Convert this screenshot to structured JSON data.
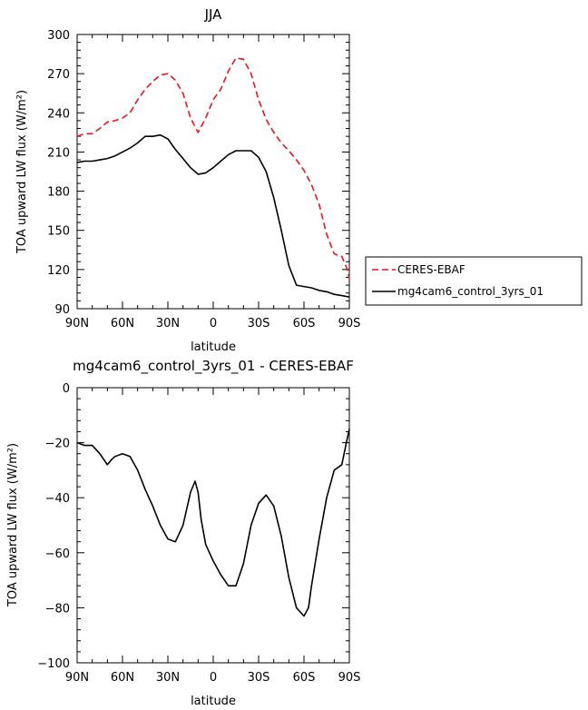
{
  "chart_data": [
    {
      "type": "line",
      "title": "JJA",
      "xlabel": "latitude",
      "ylabel": "TOA upward LW flux (W/m²)",
      "xlim": [
        90,
        -90
      ],
      "ylim": [
        90,
        300
      ],
      "xticks": [
        90,
        60,
        30,
        0,
        -30,
        -60,
        -90
      ],
      "xtick_labels": [
        "90N",
        "60N",
        "30N",
        "0",
        "30S",
        "60S",
        "90S"
      ],
      "yticks": [
        90,
        120,
        150,
        180,
        210,
        240,
        270,
        300
      ],
      "ytick_labels": [
        "90",
        "120",
        "150",
        "180",
        "210",
        "240",
        "270",
        "300"
      ],
      "legend_position": "right",
      "series": [
        {
          "name": "CERES-EBAF",
          "color": "#e8141e",
          "dash": "dashed",
          "x": [
            90,
            85,
            80,
            75,
            70,
            65,
            60,
            55,
            50,
            45,
            40,
            35,
            30,
            25,
            20,
            15,
            10,
            5,
            0,
            -5,
            -10,
            -15,
            -20,
            -25,
            -30,
            -35,
            -40,
            -45,
            -50,
            -55,
            -60,
            -65,
            -70,
            -75,
            -80,
            -85,
            -88,
            -90
          ],
          "y": [
            222,
            224,
            224,
            228,
            233,
            234,
            236,
            240,
            250,
            258,
            264,
            269,
            270,
            265,
            255,
            236,
            225,
            236,
            250,
            258,
            272,
            282,
            281,
            270,
            250,
            235,
            225,
            217,
            211,
            204,
            196,
            185,
            170,
            147,
            132,
            130,
            122,
            113
          ]
        },
        {
          "name": "mg4cam6_control_3yrs_01",
          "color": "#000000",
          "dash": "solid",
          "x": [
            90,
            85,
            80,
            75,
            70,
            65,
            60,
            55,
            50,
            45,
            40,
            35,
            30,
            25,
            20,
            15,
            10,
            5,
            0,
            -5,
            -10,
            -15,
            -20,
            -25,
            -30,
            -35,
            -40,
            -45,
            -50,
            -55,
            -60,
            -65,
            -70,
            -75,
            -80,
            -85,
            -90
          ],
          "y": [
            202,
            203,
            203,
            204,
            205,
            207,
            210,
            213,
            217,
            222,
            222,
            223,
            220,
            212,
            205,
            198,
            193,
            194,
            198,
            203,
            208,
            211,
            211,
            211,
            206,
            195,
            175,
            150,
            123,
            108,
            107,
            106,
            104,
            103,
            101,
            100,
            99
          ]
        }
      ]
    },
    {
      "type": "line",
      "title": "mg4cam6_control_3yrs_01 - CERES-EBAF",
      "xlabel": "latitude",
      "ylabel": "TOA upward LW flux (W/m²)",
      "xlim": [
        90,
        -90
      ],
      "ylim": [
        -100,
        0
      ],
      "xticks": [
        90,
        60,
        30,
        0,
        -30,
        -60,
        -90
      ],
      "xtick_labels": [
        "90N",
        "60N",
        "30N",
        "0",
        "30S",
        "60S",
        "90S"
      ],
      "yticks": [
        -100,
        -80,
        -60,
        -40,
        -20,
        0
      ],
      "ytick_labels": [
        "−100",
        "−80",
        "−60",
        "−40",
        "−20",
        "0"
      ],
      "series": [
        {
          "color": "#000000",
          "dash": "solid",
          "x": [
            90,
            85,
            80,
            75,
            70,
            67,
            65,
            60,
            55,
            50,
            45,
            40,
            35,
            30,
            25,
            20,
            15,
            12,
            10,
            8,
            5,
            0,
            -5,
            -10,
            -15,
            -20,
            -25,
            -30,
            -35,
            -40,
            -45,
            -50,
            -55,
            -60,
            -63,
            -65,
            -70,
            -75,
            -80,
            -85,
            -88,
            -90
          ],
          "y": [
            -20,
            -21,
            -21,
            -24,
            -28,
            -26,
            -25,
            -24,
            -25,
            -30,
            -37,
            -43,
            -50,
            -55,
            -56,
            -50,
            -38,
            -34,
            -38,
            -48,
            -57,
            -63,
            -68,
            -72,
            -72,
            -64,
            -50,
            -42,
            -39,
            -43,
            -54,
            -69,
            -80,
            -83,
            -80,
            -72,
            -55,
            -40,
            -30,
            -28,
            -20,
            -15
          ]
        }
      ]
    }
  ]
}
